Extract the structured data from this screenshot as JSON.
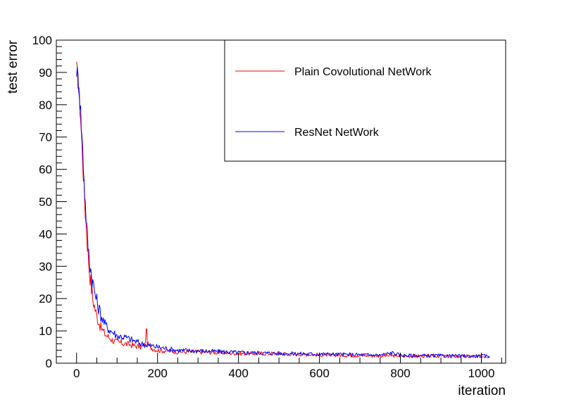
{
  "chart_data": {
    "type": "line",
    "xlabel": "iteration",
    "ylabel": "test error",
    "xlim": [
      -50,
      1060
    ],
    "ylim": [
      0,
      100
    ],
    "x_ticks": [
      0,
      200,
      400,
      600,
      800,
      1000
    ],
    "y_ticks": [
      0,
      10,
      20,
      30,
      40,
      50,
      60,
      70,
      80,
      90,
      100
    ],
    "grid": false,
    "legend_position": "top-right",
    "series": [
      {
        "name": "Plain Covolutional NetWork",
        "color": "#ff0000",
        "x": [
          0,
          5,
          10,
          15,
          20,
          25,
          30,
          35,
          40,
          50,
          60,
          70,
          80,
          90,
          100,
          120,
          140,
          160,
          170,
          172,
          175,
          180,
          200,
          250,
          300,
          350,
          400,
          450,
          500,
          550,
          600,
          650,
          700,
          750,
          800,
          850,
          900,
          950,
          1000,
          1020
        ],
        "y": [
          91,
          86,
          76,
          63,
          50,
          40,
          31,
          25,
          20,
          14.5,
          11,
          9,
          8,
          7,
          6.5,
          6,
          5.5,
          5,
          6,
          12,
          6,
          5,
          4,
          3.5,
          3.5,
          3.3,
          3,
          3,
          3,
          2.8,
          2.6,
          2.5,
          2.4,
          2.3,
          2.3,
          2.2,
          2.2,
          2.1,
          2.1,
          2.1
        ]
      },
      {
        "name": "ResNet NetWork",
        "color": "#0000ff",
        "x": [
          0,
          5,
          10,
          15,
          20,
          25,
          30,
          35,
          40,
          50,
          60,
          70,
          80,
          90,
          100,
          120,
          140,
          160,
          180,
          200,
          250,
          300,
          350,
          400,
          450,
          500,
          550,
          600,
          650,
          700,
          750,
          780,
          800,
          850,
          900,
          950,
          1000,
          1020
        ],
        "y": [
          91,
          87,
          78,
          66,
          53,
          42,
          34,
          29,
          25,
          19,
          15,
          12,
          10.5,
          9.5,
          8.5,
          8,
          7,
          6,
          5.5,
          5,
          4,
          3.8,
          3.6,
          3.3,
          3.2,
          3,
          2.9,
          2.8,
          2.7,
          2.6,
          2.5,
          3.2,
          2.4,
          2.3,
          2.3,
          2.2,
          2.2,
          2.2
        ]
      }
    ]
  }
}
